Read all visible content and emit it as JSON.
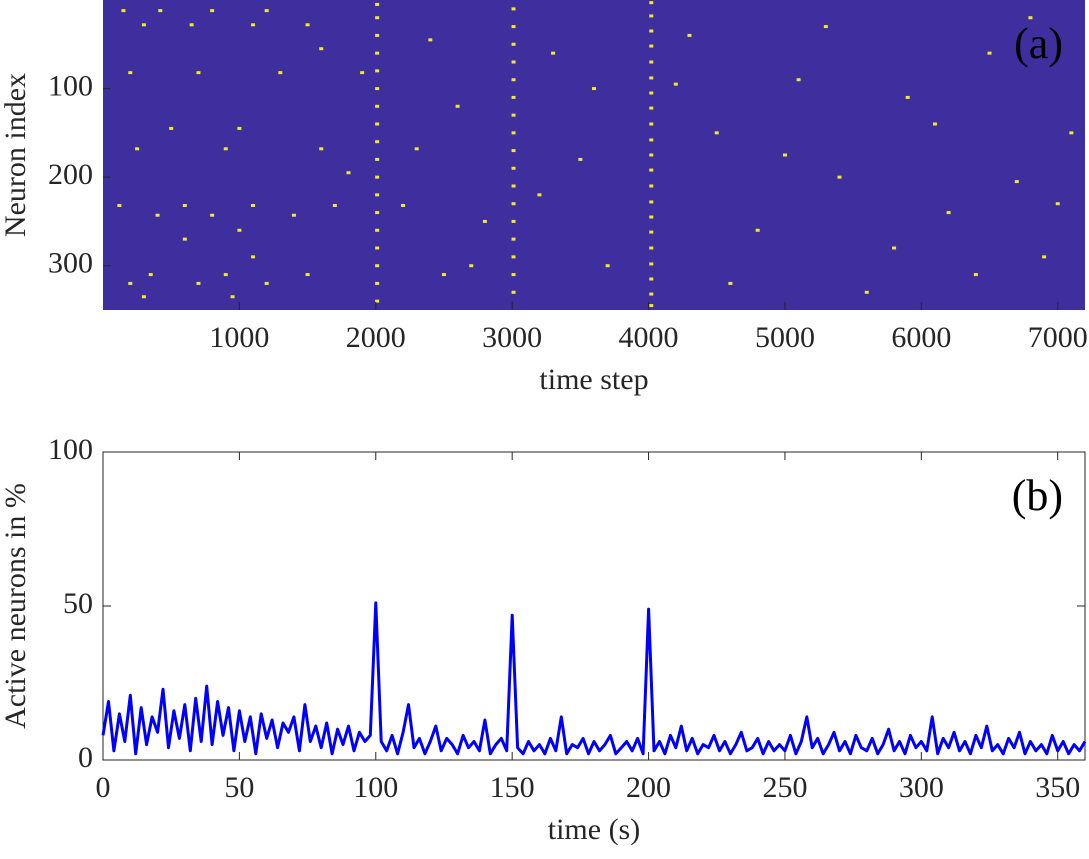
{
  "chart_data": [
    {
      "type": "raster",
      "xlabel": "time step",
      "ylabel": "Neuron index",
      "annotation": "(a)",
      "xlim": [
        0,
        7200
      ],
      "ylim": [
        0,
        350
      ],
      "yreverse": true,
      "xticks": [
        1000,
        2000,
        3000,
        4000,
        5000,
        6000,
        7000
      ],
      "yticks": [
        100,
        200,
        300
      ],
      "background": "#3e2e9e",
      "color": "#f2e92a",
      "x": [
        2010,
        2010,
        2010,
        2010,
        2010,
        2010,
        2010,
        2010,
        2010,
        2010,
        2010,
        2010,
        2010,
        2010,
        2010,
        2010,
        2010,
        2010,
        3010,
        3010,
        3010,
        3010,
        3010,
        3010,
        3010,
        3010,
        3010,
        3010,
        3010,
        3010,
        3010,
        3010,
        3010,
        3010,
        3010,
        4020,
        4020,
        4020,
        4020,
        4020,
        4020,
        4020,
        4020,
        4020,
        4020,
        4020,
        4020,
        4020,
        4020,
        4020,
        4020,
        4020,
        4020,
        4020,
        4020,
        4020,
        150,
        420,
        800,
        1200,
        300,
        650,
        1100,
        1500,
        200,
        700,
        1300,
        1900,
        500,
        1000,
        1600,
        250,
        900,
        2300,
        120,
        600,
        1100,
        1700,
        2200,
        400,
        800,
        1400,
        350,
        900,
        1500,
        2500,
        200,
        700,
        1200,
        300,
        950,
        1100,
        600,
        1800,
        2600,
        2800,
        3300,
        3500,
        3700,
        4300,
        4500,
        4800,
        5100,
        5400,
        5600,
        5900,
        6200,
        6500,
        6700,
        6900,
        7100,
        4200,
        4600,
        5000,
        5300,
        5800,
        6100,
        6400,
        6800,
        7000,
        3200,
        3600,
        2400,
        2700,
        1600,
        1000
      ],
      "y": [
        5,
        20,
        40,
        60,
        80,
        100,
        120,
        140,
        160,
        180,
        200,
        220,
        240,
        260,
        280,
        300,
        320,
        340,
        10,
        30,
        50,
        70,
        90,
        110,
        130,
        150,
        170,
        190,
        210,
        230,
        250,
        270,
        290,
        310,
        330,
        3,
        18,
        35,
        52,
        70,
        88,
        105,
        122,
        140,
        158,
        175,
        192,
        210,
        228,
        245,
        262,
        280,
        298,
        315,
        332,
        345,
        12,
        12,
        12,
        12,
        28,
        28,
        28,
        28,
        82,
        82,
        82,
        82,
        145,
        145,
        168,
        168,
        168,
        168,
        232,
        232,
        232,
        232,
        232,
        243,
        243,
        243,
        310,
        310,
        310,
        310,
        320,
        320,
        320,
        335,
        335,
        290,
        270,
        195,
        120,
        250,
        60,
        180,
        300,
        40,
        150,
        260,
        90,
        200,
        330,
        110,
        240,
        60,
        205,
        290,
        150,
        95,
        320,
        175,
        30,
        280,
        140,
        310,
        20,
        230,
        220,
        100,
        45,
        300,
        55,
        260
      ]
    },
    {
      "type": "line",
      "xlabel": "time (s)",
      "ylabel": "Active neurons in %",
      "annotation": "(b)",
      "xlim": [
        0,
        360
      ],
      "ylim": [
        0,
        100
      ],
      "xticks": [
        0,
        50,
        100,
        150,
        200,
        250,
        300,
        350
      ],
      "yticks": [
        0,
        50,
        100
      ],
      "color": "#0000ff",
      "x": [
        0,
        2,
        4,
        6,
        8,
        10,
        12,
        14,
        16,
        18,
        20,
        22,
        24,
        26,
        28,
        30,
        32,
        34,
        36,
        38,
        40,
        42,
        44,
        46,
        48,
        50,
        52,
        54,
        56,
        58,
        60,
        62,
        64,
        66,
        68,
        70,
        72,
        74,
        76,
        78,
        80,
        82,
        84,
        86,
        88,
        90,
        92,
        94,
        96,
        98,
        100,
        102,
        104,
        106,
        108,
        110,
        112,
        114,
        116,
        118,
        120,
        122,
        124,
        126,
        128,
        130,
        132,
        134,
        136,
        138,
        140,
        142,
        144,
        146,
        148,
        150,
        152,
        154,
        156,
        158,
        160,
        162,
        164,
        166,
        168,
        170,
        172,
        174,
        176,
        178,
        180,
        182,
        184,
        186,
        188,
        190,
        192,
        194,
        196,
        198,
        200,
        202,
        204,
        206,
        208,
        210,
        212,
        214,
        216,
        218,
        220,
        222,
        224,
        226,
        228,
        230,
        232,
        234,
        236,
        238,
        240,
        242,
        244,
        246,
        248,
        250,
        252,
        254,
        256,
        258,
        260,
        262,
        264,
        266,
        268,
        270,
        272,
        274,
        276,
        278,
        280,
        282,
        284,
        286,
        288,
        290,
        292,
        294,
        296,
        298,
        300,
        302,
        304,
        306,
        308,
        310,
        312,
        314,
        316,
        318,
        320,
        322,
        324,
        326,
        328,
        330,
        332,
        334,
        336,
        338,
        340,
        342,
        344,
        346,
        348,
        350,
        352,
        354,
        356,
        358,
        360
      ],
      "values": [
        8,
        19,
        3,
        15,
        6,
        21,
        2,
        17,
        5,
        14,
        9,
        23,
        4,
        16,
        7,
        18,
        3,
        20,
        6,
        24,
        5,
        19,
        8,
        17,
        3,
        16,
        6,
        14,
        2,
        15,
        7,
        13,
        4,
        12,
        9,
        14,
        3,
        18,
        6,
        11,
        4,
        12,
        2,
        10,
        5,
        11,
        3,
        9,
        6,
        8,
        51,
        6,
        3,
        8,
        2,
        9,
        18,
        4,
        7,
        2,
        6,
        11,
        3,
        7,
        5,
        2,
        8,
        4,
        6,
        3,
        13,
        2,
        5,
        7,
        3,
        47,
        4,
        2,
        6,
        3,
        5,
        2,
        7,
        3,
        14,
        2,
        5,
        4,
        7,
        2,
        6,
        3,
        5,
        8,
        2,
        4,
        6,
        3,
        7,
        2,
        49,
        3,
        6,
        2,
        8,
        4,
        11,
        3,
        7,
        2,
        5,
        4,
        8,
        3,
        6,
        2,
        5,
        9,
        3,
        4,
        7,
        2,
        6,
        3,
        5,
        3,
        8,
        2,
        6,
        14,
        4,
        7,
        2,
        5,
        9,
        3,
        6,
        2,
        8,
        4,
        3,
        7,
        2,
        5,
        10,
        3,
        6,
        2,
        8,
        4,
        6,
        3,
        14,
        2,
        7,
        4,
        9,
        3,
        6,
        2,
        8,
        4,
        11,
        3,
        5,
        2,
        7,
        4,
        9,
        2,
        6,
        3,
        5,
        2,
        8,
        3,
        6,
        2,
        5,
        3,
        6
      ]
    }
  ]
}
